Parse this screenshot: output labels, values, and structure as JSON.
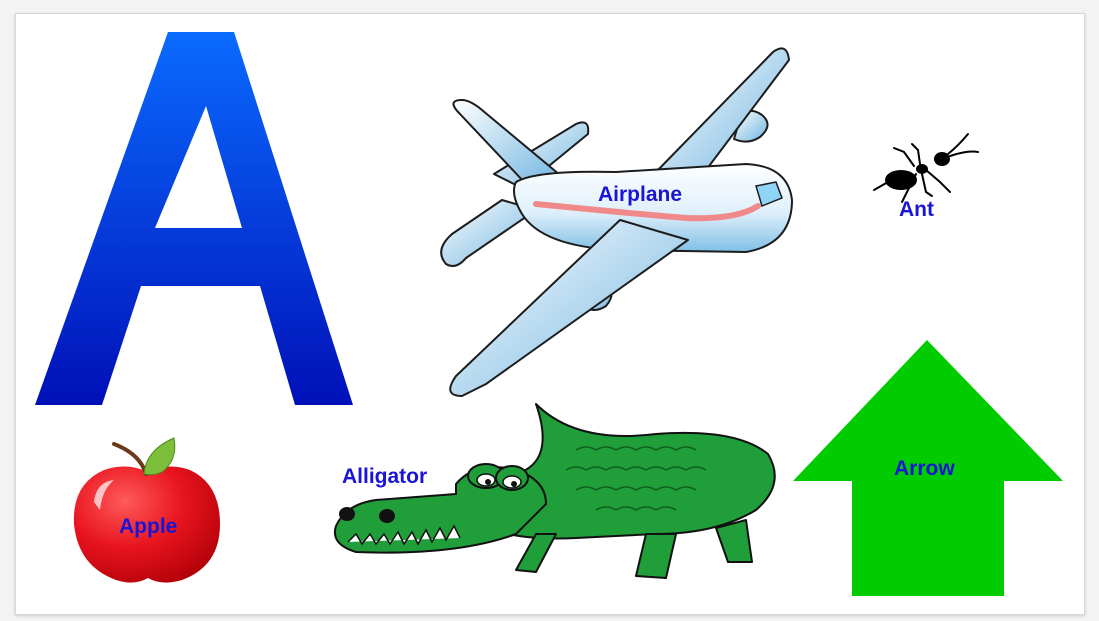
{
  "letter": "A",
  "colors": {
    "label_text": "#1a14d4",
    "letter_top": "#0a6bff",
    "letter_bottom": "#0010b8",
    "apple_red": "#e8141e",
    "leaf_green": "#7bbf3a",
    "alligator_green": "#1f9e3a",
    "arrow_green": "#00cc00",
    "plane_blue": "#8cc8ee",
    "plane_stripe": "#f08a8a"
  },
  "labels": {
    "airplane": "Airplane",
    "ant": "Ant",
    "alligator": "Alligator",
    "apple": "Apple",
    "arrow": "Arrow"
  }
}
